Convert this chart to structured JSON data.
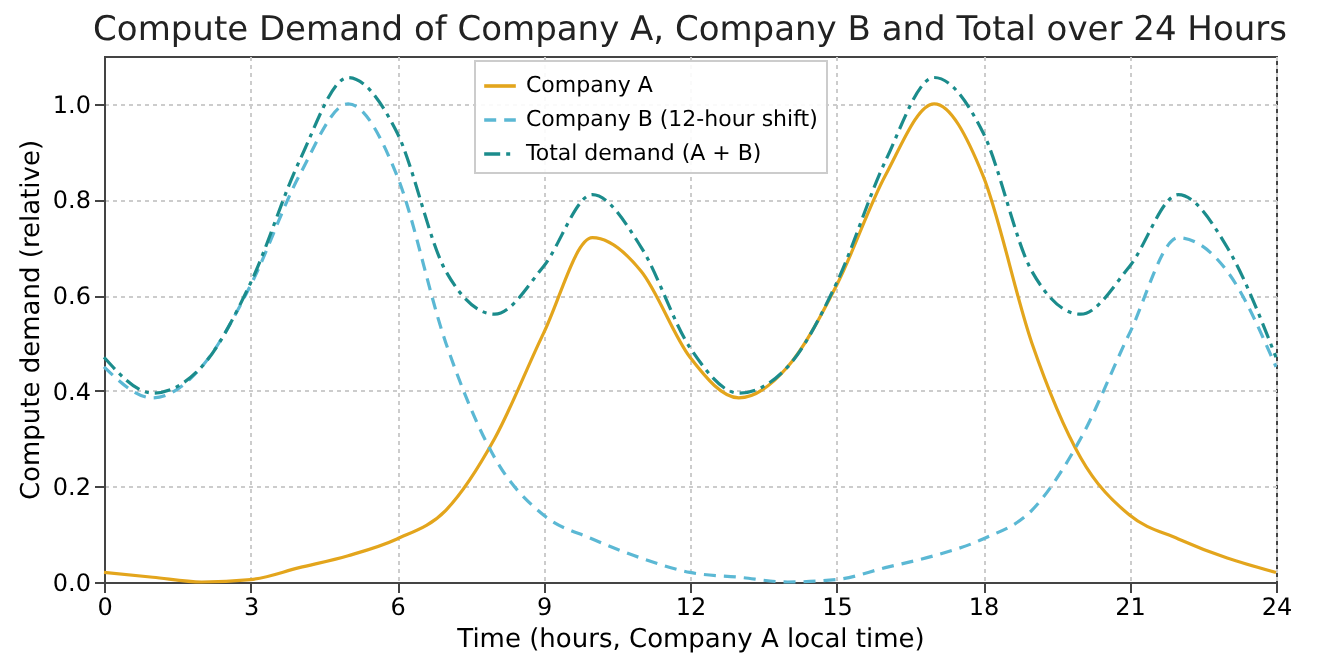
{
  "chart_data": {
    "type": "line",
    "title": "Compute Demand of Company A, Company B and Total over 24 Hours",
    "xlabel": "Time (hours, Company A local time)",
    "ylabel": "Compute demand (relative)",
    "x": [
      0,
      1,
      2,
      3,
      4,
      5,
      6,
      7,
      8,
      9,
      10,
      11,
      12,
      13,
      14,
      15,
      16,
      17,
      18,
      19,
      20,
      21,
      22,
      23,
      24
    ],
    "series": [
      {
        "name": "Company A",
        "color": "#e3a51c",
        "line_style": "solid",
        "values": [
          0.02,
          0.01,
          0.0,
          0.005,
          0.03,
          0.055,
          0.09,
          0.15,
          0.3,
          0.52,
          0.72,
          0.65,
          0.47,
          0.385,
          0.45,
          0.62,
          0.85,
          1.0,
          0.85,
          0.5,
          0.26,
          0.14,
          0.09,
          0.05,
          0.02
        ]
      },
      {
        "name": "Company B (12-hour shift)",
        "color": "#5bb8d4",
        "line_style": "dashed",
        "values": [
          0.45,
          0.385,
          0.45,
          0.62,
          0.85,
          1.0,
          0.85,
          0.5,
          0.26,
          0.14,
          0.09,
          0.05,
          0.02,
          0.01,
          0.0,
          0.005,
          0.03,
          0.055,
          0.09,
          0.15,
          0.3,
          0.52,
          0.72,
          0.65,
          0.45
        ]
      },
      {
        "name": "Total demand (A + B)",
        "color": "#1b8c8c",
        "line_style": "dashdot",
        "values": [
          0.47,
          0.395,
          0.45,
          0.625,
          0.88,
          1.055,
          0.94,
          0.65,
          0.56,
          0.66,
          0.81,
          0.7,
          0.49,
          0.395,
          0.45,
          0.625,
          0.88,
          1.055,
          0.94,
          0.65,
          0.56,
          0.66,
          0.81,
          0.7,
          0.47
        ]
      }
    ],
    "xlim": [
      0,
      24
    ],
    "xticks": [
      0,
      3,
      6,
      9,
      12,
      15,
      18,
      21,
      24
    ],
    "ylim": [
      0,
      1.1
    ],
    "yticks": [
      {
        "value": 0,
        "label": "0.0"
      },
      0.2,
      0.4,
      0.6,
      0.8,
      {
        "value": 1,
        "label": "1.0"
      }
    ],
    "grid": true,
    "legend": "top"
  }
}
